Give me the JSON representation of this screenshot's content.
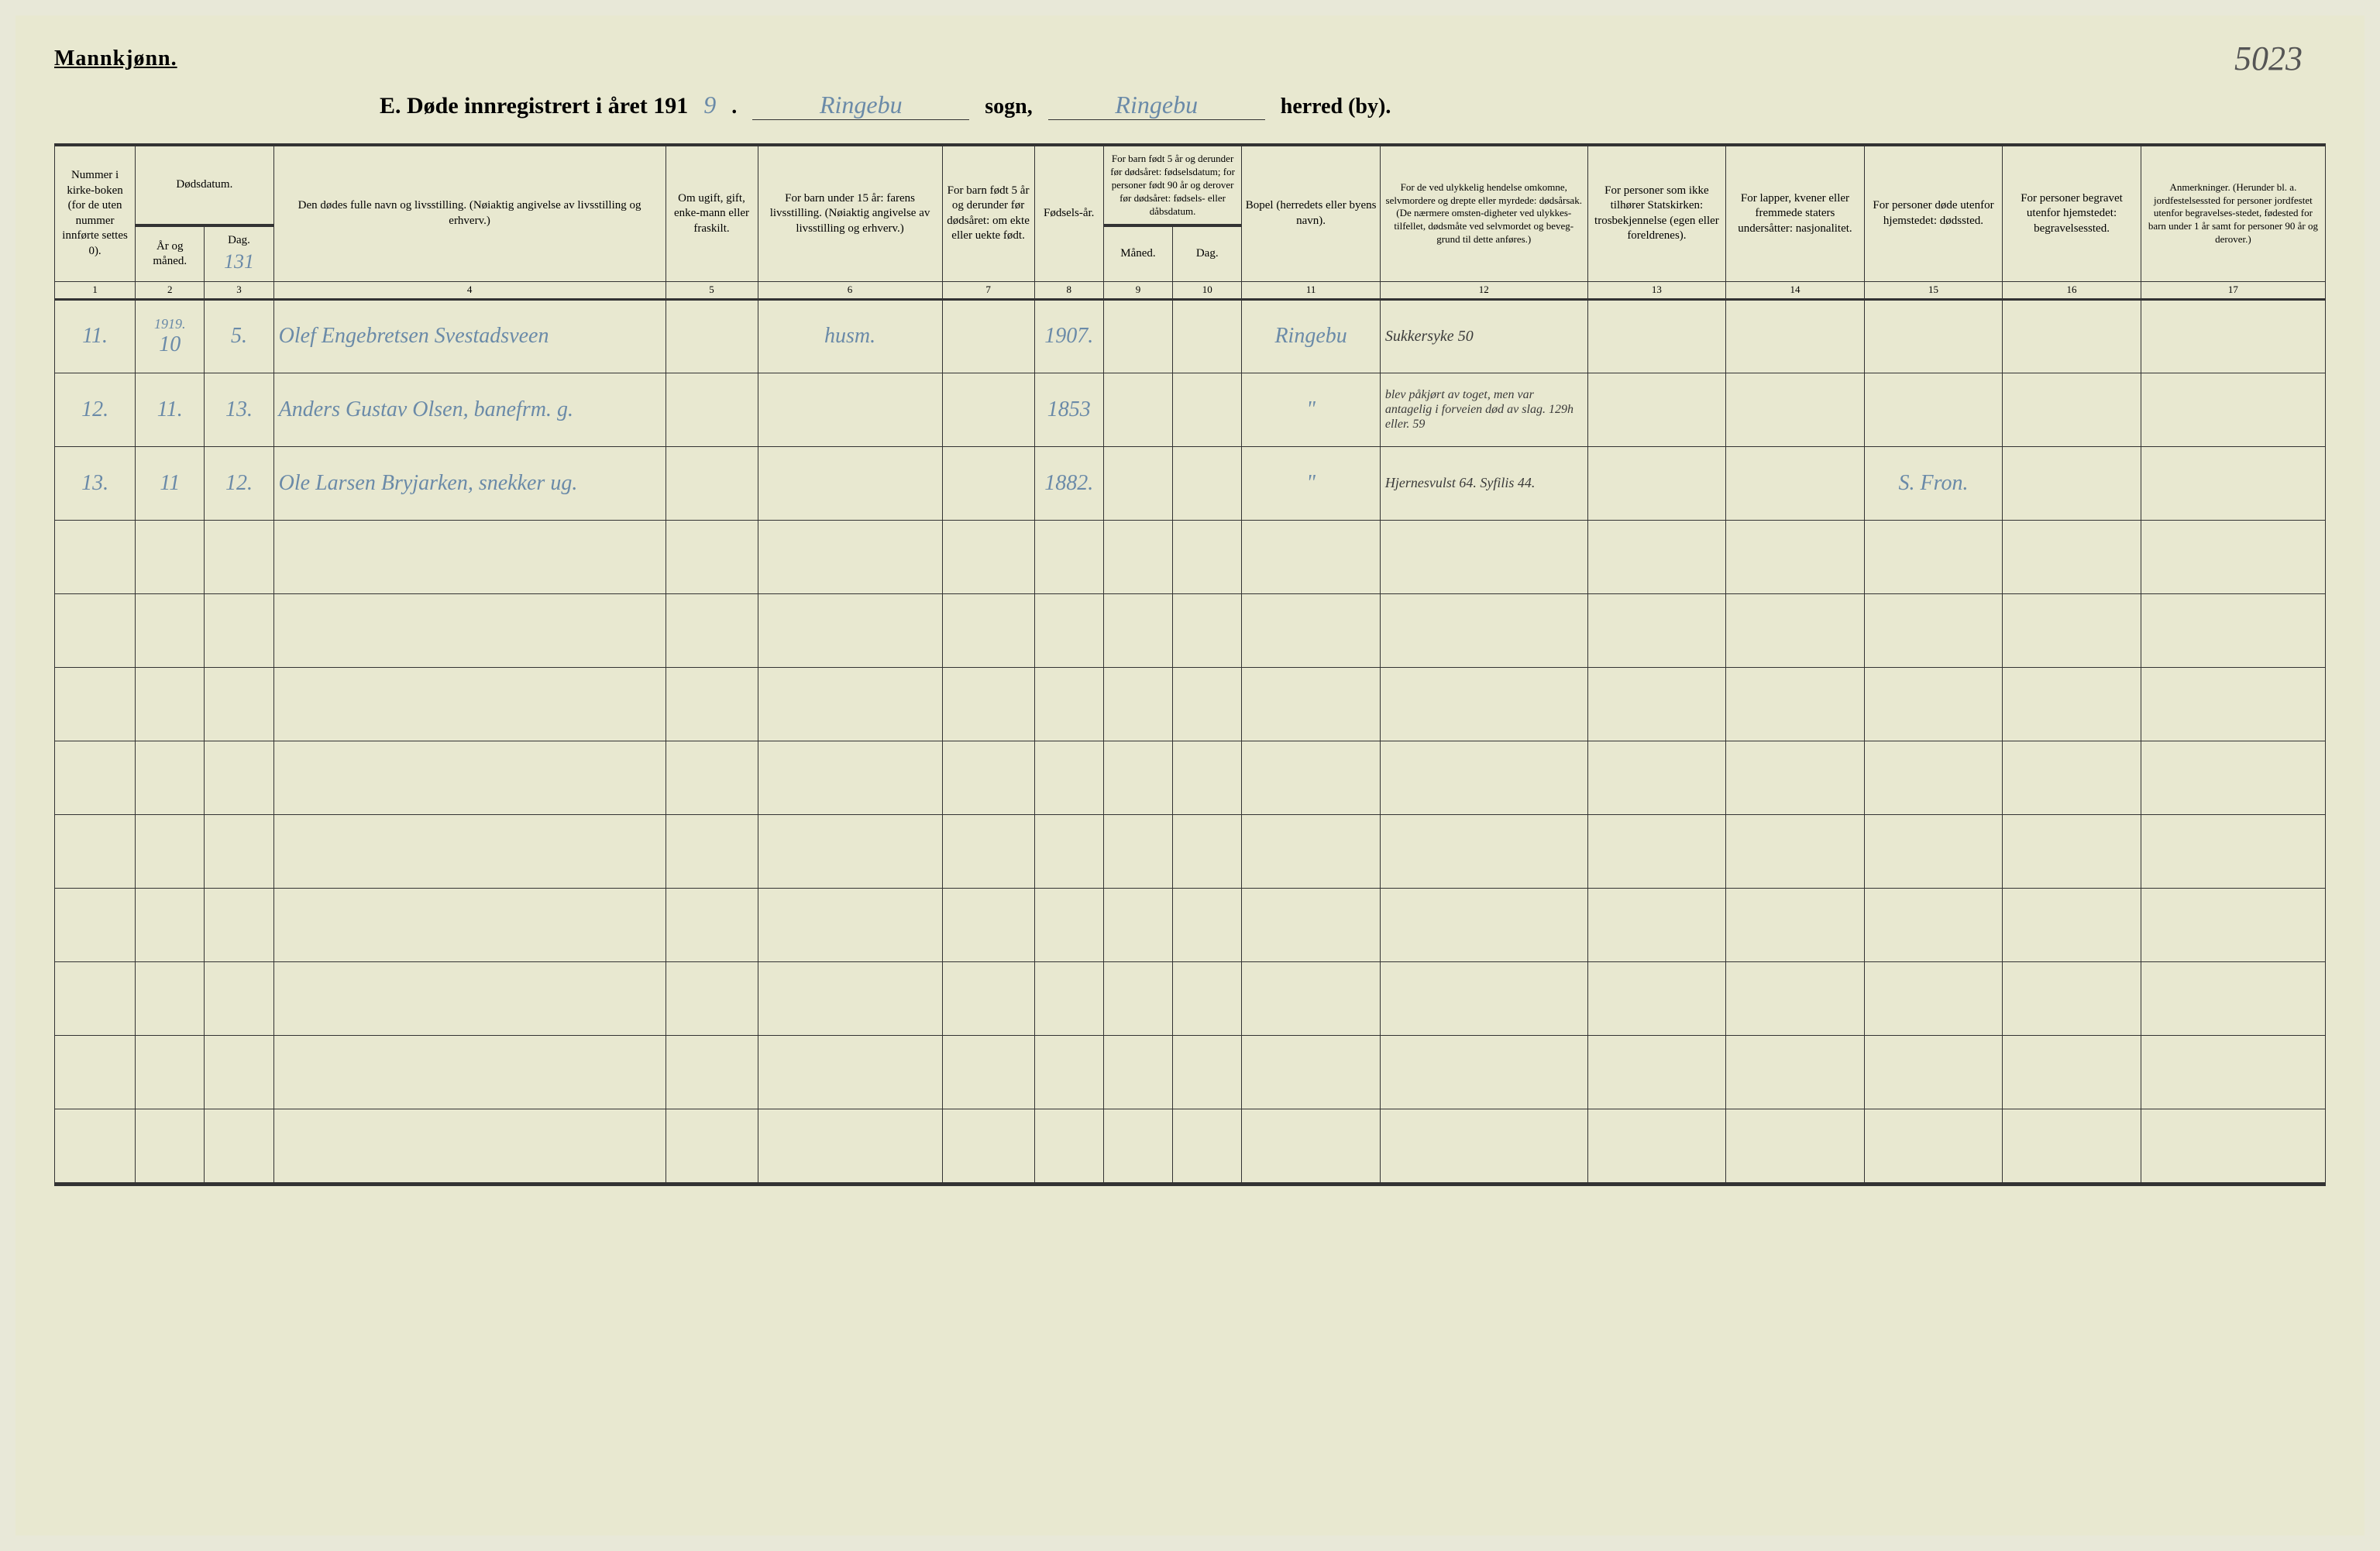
{
  "page_number_handwritten": "5023",
  "header": {
    "mannkjonn": "Mannkjønn.",
    "title_prefix": "E. Døde innregistrert i året 191",
    "year_suffix": "9",
    "sogn_label": "sogn,",
    "sogn_value": "Ringebu",
    "herred_label": "herred (by).",
    "herred_value": "Ringebu"
  },
  "columns": {
    "c1": "Nummer i kirke-boken (for de uten nummer innførte settes 0).",
    "c2": "År og måned.",
    "c3": "Dag.",
    "c2_3_top": "Dødsdatum.",
    "c4": "Den dødes fulle navn og livsstilling. (Nøiaktig angivelse av livsstilling og erhverv.)",
    "c5": "Om ugift, gift, enke-mann eller fraskilt.",
    "c6": "For barn under 15 år: farens livsstilling. (Nøiaktig angivelse av livsstilling og erhverv.)",
    "c7": "For barn født 5 år og derunder før dødsåret: om ekte eller uekte født.",
    "c8": "Fødsels-år.",
    "c9_10_top": "For barn født 5 år og derunder før dødsåret: fødselsdatum; for personer født 90 år og derover før dødsåret: fødsels- eller dåbsdatum.",
    "c9": "Måned.",
    "c10": "Dag.",
    "c11": "Bopel (herredets eller byens navn).",
    "c12": "For de ved ulykkelig hendelse omkomne, selvmordere og drepte eller myrdede: dødsårsak. (De nærmere omsten-digheter ved ulykkes-tilfellet, dødsmåte ved selvmordet og beveg-grund til dette anføres.)",
    "c13": "For personer som ikke tilhører Statskirken: trosbekjennelse (egen eller foreldrenes).",
    "c14": "For lapper, kvener eller fremmede staters undersåtter: nasjonalitet.",
    "c15": "For personer døde utenfor hjemstedet: dødssted.",
    "c16": "For personer begravet utenfor hjemstedet: begravelsessted.",
    "c17": "Anmerkninger. (Herunder bl. a. jordfestelsessted for personer jordfestet utenfor begravelses-stedet, fødested for barn under 1 år samt for personer 90 år og derover.)"
  },
  "colnums": [
    "1",
    "2",
    "3",
    "4",
    "5",
    "6",
    "7",
    "8",
    "9",
    "10",
    "11",
    "12",
    "13",
    "14",
    "15",
    "16",
    "17"
  ],
  "folio_handwritten": "131",
  "year_cell": "1919.",
  "rows": [
    {
      "num": "11.",
      "ar_maned": "10",
      "dag": "5.",
      "navn": "Olef Engebretsen Svestadsveen",
      "ugift": "",
      "faren": "husm.",
      "c7": "",
      "fodselsar": "1907.",
      "c9": "",
      "c10": "",
      "bopel": "Ringebu",
      "dodsarsak": "Sukkersyke 50",
      "c13": "",
      "c14": "",
      "c15": "",
      "c16": "",
      "c17": ""
    },
    {
      "num": "12.",
      "ar_maned": "11.",
      "dag": "13.",
      "navn": "Anders Gustav Olsen, banefrm. g.",
      "ugift": "",
      "faren": "",
      "c7": "",
      "fodselsar": "1853",
      "c9": "",
      "c10": "",
      "bopel": "\"",
      "dodsarsak": "blev påkjørt av toget, men var antagelig i forveien død av slag. 129h eller. 59",
      "c13": "",
      "c14": "",
      "c15": "",
      "c16": "",
      "c17": ""
    },
    {
      "num": "13.",
      "ar_maned": "11",
      "dag": "12.",
      "navn": "Ole Larsen Bryjarken, snekker ug.",
      "ugift": "",
      "faren": "",
      "c7": "",
      "fodselsar": "1882.",
      "c9": "",
      "c10": "",
      "bopel": "\"",
      "dodsarsak": "Hjernesvulst 64. Syfilis 44.",
      "c13": "",
      "c14": "",
      "c15": "S. Fron.",
      "c16": "",
      "c17": ""
    }
  ],
  "empty_row_count": 9,
  "colors": {
    "paper": "#e8e8d0",
    "ink": "#333333",
    "handwriting_blue": "#6a8aa8",
    "handwriting_dark": "#3a3a3a"
  }
}
